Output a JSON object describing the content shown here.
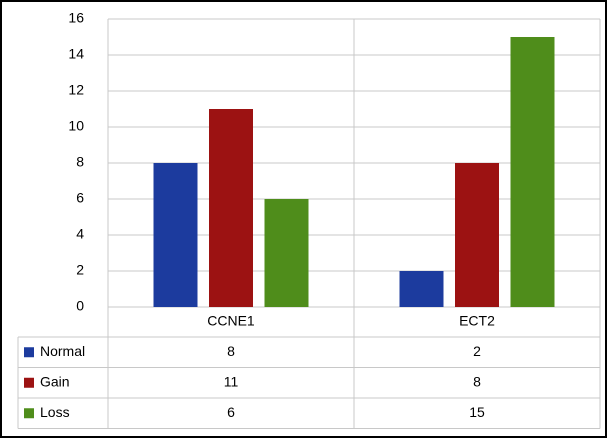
{
  "chart_data": {
    "type": "bar",
    "categories": [
      "CCNE1",
      "ECT2"
    ],
    "series": [
      {
        "name": "Normal",
        "color": "#1c3b9e",
        "values": [
          8,
          2
        ]
      },
      {
        "name": "Gain",
        "color": "#9c1212",
        "values": [
          11,
          8
        ]
      },
      {
        "name": "Loss",
        "color": "#4f8d1b",
        "values": [
          6,
          15
        ]
      }
    ],
    "ylim": [
      0,
      16
    ],
    "yticks": [
      0,
      2,
      4,
      6,
      8,
      10,
      12,
      14,
      16
    ],
    "grid": true
  }
}
